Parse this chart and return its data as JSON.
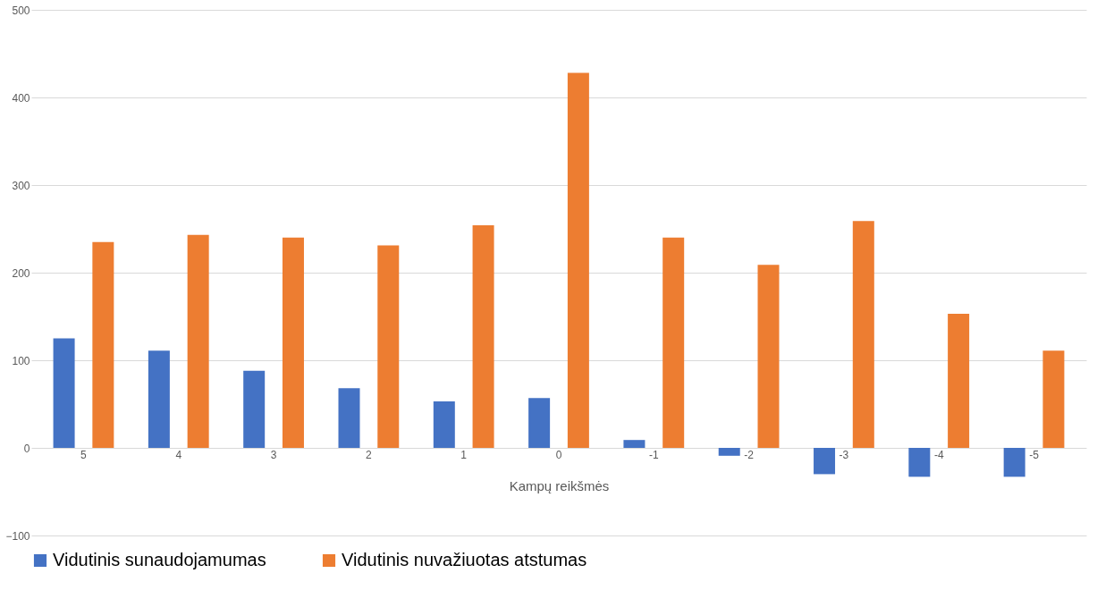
{
  "chart_data": {
    "type": "bar",
    "xlabel": "Kampų reikšmės",
    "categories": [
      "5",
      "4",
      "3",
      "2",
      "1",
      "0",
      "-1",
      "-2",
      "-3",
      "-4",
      "-5"
    ],
    "series": [
      {
        "name": "Vidutinis sunaudojamumas",
        "color": "#4472c4",
        "values": [
          125,
          111,
          88,
          68,
          53,
          57,
          9,
          -9,
          -30,
          -33,
          -33
        ]
      },
      {
        "name": "Vidutinis nuvažiuotas atstumas",
        "color": "#ed7d31",
        "values": [
          235,
          243,
          240,
          231,
          254,
          428,
          240,
          209,
          259,
          153,
          111
        ]
      }
    ],
    "ylim": [
      -100,
      500
    ],
    "yticks": [
      -100,
      0,
      100,
      200,
      300,
      400,
      500
    ],
    "grid": "y",
    "legend": "bottom"
  }
}
